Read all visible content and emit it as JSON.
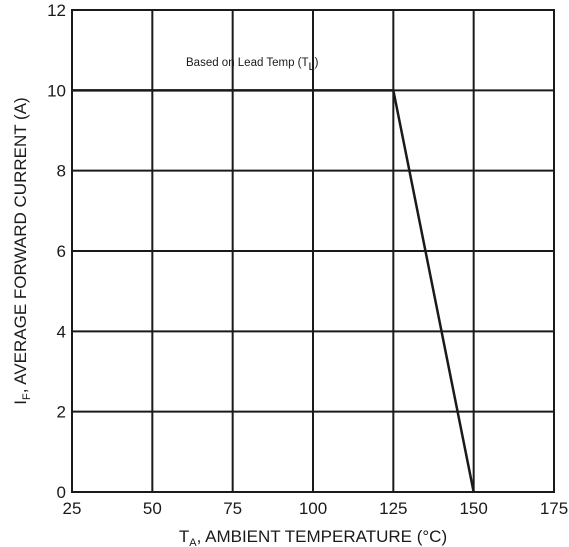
{
  "chart_data": {
    "type": "line",
    "title": "",
    "xlabel": {
      "prefix": "T",
      "sub": "A",
      "text": ", AMBIENT TEMPERATURE (°C)"
    },
    "ylabel": {
      "prefix": "I",
      "sub": "F",
      "text": ", AVERAGE FORWARD CURRENT (A)"
    },
    "xlim": [
      25,
      175
    ],
    "ylim": [
      0,
      12
    ],
    "xticks": [
      "25",
      "50",
      "75",
      "100",
      "125",
      "150",
      "175"
    ],
    "yticks": [
      "0",
      "2",
      "4",
      "6",
      "8",
      "10",
      "12"
    ],
    "grid": true,
    "series": [
      {
        "x": [
          25,
          125,
          150
        ],
        "y": [
          10,
          10,
          0
        ]
      }
    ],
    "annotation": {
      "text": "Based on Lead Temp (T",
      "sub": "L",
      "suffix": ")"
    }
  },
  "colors": {
    "line": "#1a1a1a",
    "grid": "#1a1a1a",
    "background": "#ffffff"
  }
}
